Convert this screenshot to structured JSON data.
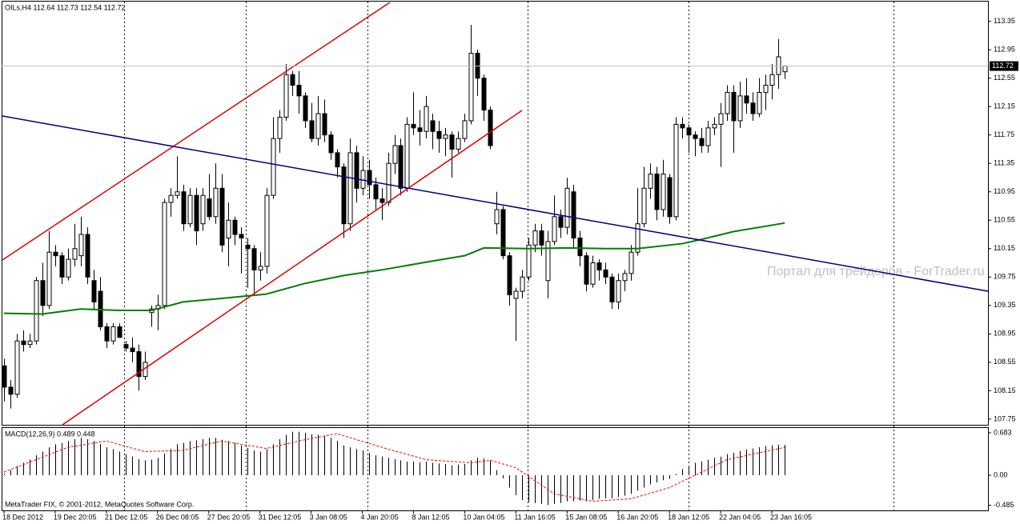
{
  "chart_data": {
    "type": "candlestick",
    "header": "OILs,H4 112.64 112.73 112.54 112.72",
    "ohlc": [
      [
        108.5,
        108.6,
        108.0,
        108.2
      ],
      [
        108.2,
        108.3,
        107.9,
        108.1
      ],
      [
        108.1,
        108.95,
        108.05,
        108.85
      ],
      [
        108.85,
        109.0,
        108.7,
        108.8
      ],
      [
        108.8,
        108.95,
        108.75,
        108.85
      ],
      [
        108.85,
        109.75,
        108.8,
        109.7
      ],
      [
        109.7,
        109.95,
        109.2,
        109.35
      ],
      [
        109.35,
        110.4,
        109.3,
        110.1
      ],
      [
        110.1,
        110.2,
        109.9,
        110.05
      ],
      [
        110.05,
        110.1,
        109.65,
        109.75
      ],
      [
        109.75,
        110.15,
        109.7,
        110.0
      ],
      [
        110.0,
        110.5,
        109.9,
        110.15
      ],
      [
        110.05,
        110.6,
        109.9,
        110.35
      ],
      [
        110.35,
        110.45,
        109.65,
        109.75
      ],
      [
        109.7,
        109.85,
        109.3,
        109.4
      ],
      [
        109.55,
        109.75,
        109.0,
        109.05
      ],
      [
        109.05,
        109.1,
        108.75,
        108.85
      ],
      [
        108.85,
        109.1,
        108.8,
        109.05
      ],
      [
        109.05,
        109.1,
        108.9,
        108.9
      ],
      [
        108.8,
        108.85,
        108.7,
        108.75
      ],
      [
        108.75,
        108.9,
        108.55,
        108.7
      ],
      [
        108.7,
        108.8,
        108.15,
        108.35
      ],
      [
        108.35,
        108.7,
        108.3,
        108.55
      ],
      [
        109.25,
        109.35,
        109.05,
        109.3
      ],
      [
        109.3,
        109.5,
        109.0,
        109.35
      ],
      [
        109.35,
        110.85,
        109.3,
        110.8
      ],
      [
        110.8,
        111.0,
        110.6,
        110.9
      ],
      [
        110.9,
        111.45,
        110.85,
        110.95
      ],
      [
        110.95,
        111.05,
        110.4,
        110.5
      ],
      [
        110.5,
        111.0,
        110.45,
        110.9
      ],
      [
        110.9,
        111.0,
        110.2,
        110.4
      ],
      [
        110.5,
        111.0,
        110.4,
        110.9
      ],
      [
        110.85,
        111.2,
        110.55,
        110.6
      ],
      [
        110.6,
        111.35,
        110.5,
        111.0
      ],
      [
        111.0,
        111.2,
        110.1,
        110.2
      ],
      [
        110.3,
        110.8,
        109.9,
        110.55
      ],
      [
        110.55,
        110.6,
        110.2,
        110.35
      ],
      [
        110.35,
        110.45,
        109.8,
        110.3
      ],
      [
        110.2,
        110.3,
        109.6,
        110.15
      ],
      [
        110.15,
        110.2,
        109.5,
        109.85
      ],
      [
        109.85,
        110.1,
        109.7,
        109.9
      ],
      [
        109.9,
        111.0,
        109.8,
        110.9
      ],
      [
        110.9,
        112.0,
        110.85,
        111.7
      ],
      [
        111.7,
        112.1,
        111.5,
        112.0
      ],
      [
        112.0,
        112.75,
        111.95,
        112.6
      ],
      [
        112.6,
        112.65,
        112.3,
        112.45
      ],
      [
        112.45,
        112.65,
        112.05,
        112.3
      ],
      [
        112.3,
        112.35,
        111.85,
        111.95
      ],
      [
        111.95,
        112.2,
        111.65,
        111.7
      ],
      [
        111.7,
        112.3,
        111.6,
        112.05
      ],
      [
        112.05,
        112.25,
        111.65,
        111.75
      ],
      [
        111.75,
        111.8,
        111.4,
        111.5
      ],
      [
        111.5,
        111.55,
        111.15,
        111.3
      ],
      [
        111.3,
        111.35,
        110.3,
        110.5
      ],
      [
        110.5,
        111.7,
        110.4,
        111.5
      ],
      [
        111.5,
        111.6,
        110.8,
        111.0
      ],
      [
        111.0,
        111.45,
        110.9,
        111.25
      ],
      [
        111.25,
        111.4,
        110.85,
        111.05
      ],
      [
        111.05,
        111.15,
        110.7,
        110.85
      ],
      [
        110.85,
        111.0,
        110.55,
        110.8
      ],
      [
        110.8,
        111.5,
        110.75,
        111.35
      ],
      [
        111.35,
        111.75,
        111.2,
        111.6
      ],
      [
        111.6,
        111.7,
        110.9,
        111.0
      ],
      [
        111.0,
        112.0,
        110.95,
        111.9
      ],
      [
        111.9,
        112.35,
        111.75,
        111.85
      ],
      [
        111.85,
        112.1,
        111.6,
        111.8
      ],
      [
        111.8,
        112.3,
        111.7,
        112.15
      ],
      [
        111.95,
        112.05,
        111.55,
        111.8
      ],
      [
        111.8,
        111.95,
        111.5,
        111.7
      ],
      [
        111.7,
        111.85,
        111.45,
        111.75
      ],
      [
        111.75,
        111.8,
        111.15,
        111.55
      ],
      [
        111.55,
        111.8,
        111.5,
        111.7
      ],
      [
        111.7,
        112.05,
        111.65,
        111.95
      ],
      [
        111.95,
        113.3,
        111.9,
        112.9
      ],
      [
        112.9,
        112.95,
        112.3,
        112.55
      ],
      [
        112.55,
        112.6,
        111.95,
        112.1
      ],
      [
        112.1,
        112.15,
        111.55,
        111.6
      ],
      [
        110.5,
        110.95,
        110.35,
        110.7
      ],
      [
        110.7,
        110.75,
        110.0,
        110.05
      ],
      [
        110.05,
        110.1,
        109.35,
        109.5
      ],
      [
        109.45,
        109.6,
        108.85,
        109.55
      ],
      [
        109.55,
        109.85,
        109.45,
        109.75
      ],
      [
        109.75,
        110.3,
        109.7,
        110.2
      ],
      [
        110.2,
        110.5,
        110.1,
        110.4
      ],
      [
        110.4,
        110.5,
        110.05,
        110.2
      ],
      [
        109.7,
        110.4,
        109.45,
        110.25
      ],
      [
        110.25,
        110.9,
        110.2,
        110.6
      ],
      [
        110.6,
        110.7,
        110.3,
        110.45
      ],
      [
        110.45,
        111.15,
        110.35,
        111.0
      ],
      [
        110.95,
        111.05,
        110.15,
        110.3
      ],
      [
        110.3,
        110.4,
        109.9,
        110.05
      ],
      [
        110.05,
        110.1,
        109.55,
        109.65
      ],
      [
        109.65,
        110.05,
        109.6,
        109.95
      ],
      [
        109.95,
        110.0,
        109.7,
        109.85
      ],
      [
        109.85,
        109.95,
        109.65,
        109.75
      ],
      [
        109.75,
        109.8,
        109.3,
        109.4
      ],
      [
        109.4,
        109.8,
        109.3,
        109.7
      ],
      [
        109.7,
        109.85,
        109.55,
        109.8
      ],
      [
        109.8,
        110.2,
        109.7,
        110.1
      ],
      [
        110.1,
        111.0,
        110.05,
        110.5
      ],
      [
        110.5,
        111.3,
        110.45,
        111.0
      ],
      [
        111.0,
        111.35,
        110.85,
        111.2
      ],
      [
        111.2,
        111.3,
        110.55,
        110.7
      ],
      [
        110.7,
        111.4,
        110.6,
        111.2
      ],
      [
        111.15,
        111.2,
        110.5,
        110.6
      ],
      [
        110.6,
        112.0,
        110.55,
        111.9
      ],
      [
        111.9,
        112.0,
        111.7,
        111.85
      ],
      [
        111.85,
        111.9,
        111.5,
        111.75
      ],
      [
        111.75,
        111.8,
        111.45,
        111.7
      ],
      [
        111.7,
        111.85,
        111.5,
        111.6
      ],
      [
        111.6,
        111.95,
        111.5,
        111.85
      ],
      [
        111.85,
        112.0,
        111.75,
        111.9
      ],
      [
        111.9,
        112.2,
        111.3,
        112.05
      ],
      [
        112.05,
        112.45,
        111.95,
        112.35
      ],
      [
        112.35,
        112.45,
        111.5,
        111.95
      ],
      [
        111.95,
        112.5,
        111.85,
        112.3
      ],
      [
        112.3,
        112.55,
        112.05,
        112.2
      ],
      [
        112.2,
        112.35,
        111.95,
        112.05
      ],
      [
        112.05,
        112.55,
        112.0,
        112.35
      ],
      [
        112.35,
        112.6,
        112.1,
        112.45
      ],
      [
        112.45,
        112.75,
        112.25,
        112.6
      ],
      [
        112.6,
        113.1,
        112.4,
        112.85
      ],
      [
        112.64,
        112.73,
        112.54,
        112.72
      ]
    ],
    "ma": {
      "color": "#008000",
      "x": [
        0,
        6,
        12,
        18,
        23,
        28,
        34,
        41,
        47,
        53,
        59,
        66,
        72,
        75,
        82,
        88,
        94,
        99,
        106,
        109,
        114,
        122
      ],
      "values": [
        109.24,
        109.23,
        109.3,
        109.28,
        109.28,
        109.4,
        109.45,
        109.51,
        109.66,
        109.77,
        109.85,
        109.96,
        110.05,
        110.16,
        110.15,
        110.16,
        110.15,
        110.15,
        110.22,
        110.28,
        110.39,
        110.51
      ]
    },
    "ylim": [
      107.67,
      113.65
    ],
    "yticks": [
      113.35,
      112.95,
      112.55,
      112.15,
      111.75,
      111.35,
      110.95,
      110.55,
      110.15,
      109.75,
      109.35,
      108.95,
      108.55,
      108.15,
      107.75
    ],
    "x_labels": [
      "18 Dec 2012",
      "19 Dec 20:05",
      "21 Dec 12:05",
      "26 Dec 08:05",
      "27 Dec 20:05",
      "31 Dec 12:05",
      "3 Jan 08:05",
      "4 Jan 20:05",
      "8 Jan 12:05",
      "10 Jan 04:05",
      "11 Jan 16:05",
      "15 Jan 08:05",
      "16 Jan 20:05",
      "18 Jan 12:05",
      "22 Jan 04:05",
      "23 Jan 16:05"
    ],
    "macd": {
      "label": "MACD(12,26,9) 0.489 0.448",
      "values": [
        0.02,
        0.08,
        0.15,
        0.2,
        0.25,
        0.32,
        0.38,
        0.45,
        0.5,
        0.52,
        0.55,
        0.58,
        0.6,
        0.58,
        0.55,
        0.5,
        0.45,
        0.42,
        0.38,
        0.34,
        0.3,
        0.26,
        0.24,
        0.25,
        0.28,
        0.35,
        0.42,
        0.5,
        0.52,
        0.55,
        0.56,
        0.58,
        0.6,
        0.6,
        0.57,
        0.55,
        0.52,
        0.48,
        0.44,
        0.4,
        0.38,
        0.42,
        0.5,
        0.58,
        0.65,
        0.7,
        0.7,
        0.68,
        0.66,
        0.65,
        0.63,
        0.6,
        0.55,
        0.48,
        0.45,
        0.42,
        0.4,
        0.36,
        0.32,
        0.3,
        0.28,
        0.26,
        0.24,
        0.22,
        0.22,
        0.21,
        0.22,
        0.2,
        0.19,
        0.18,
        0.16,
        0.17,
        0.18,
        0.24,
        0.28,
        0.27,
        0.24,
        0.08,
        -0.05,
        -0.2,
        -0.32,
        -0.4,
        -0.43,
        -0.45,
        -0.46,
        -0.48,
        -0.46,
        -0.45,
        -0.42,
        -0.42,
        -0.41,
        -0.42,
        -0.4,
        -0.38,
        -0.37,
        -0.37,
        -0.35,
        -0.33,
        -0.3,
        -0.25,
        -0.2,
        -0.15,
        -0.12,
        -0.08,
        -0.06,
        0.02,
        0.1,
        0.15,
        0.2,
        0.22,
        0.25,
        0.28,
        0.3,
        0.34,
        0.36,
        0.39,
        0.41,
        0.43,
        0.45,
        0.47,
        0.48,
        0.49,
        0.489
      ],
      "signal": {
        "color": "#ff0000",
        "x": [
          0,
          10,
          16,
          22,
          28,
          34,
          41,
          46,
          52,
          60,
          66,
          73,
          76,
          80,
          86,
          92,
          98,
          104,
          108,
          113,
          122
        ],
        "values": [
          0.05,
          0.45,
          0.55,
          0.38,
          0.4,
          0.55,
          0.43,
          0.55,
          0.67,
          0.42,
          0.25,
          0.2,
          0.24,
          0.12,
          -0.3,
          -0.42,
          -0.38,
          -0.2,
          0.0,
          0.25,
          0.448
        ]
      },
      "ylim": [
        -0.567,
        0.773
      ],
      "yticks": [
        0.683,
        {
          "value": 0,
          "label": "0.00"
        },
        -0.485
      ]
    },
    "watermark": "Портал для трейдеров - ForTrader.ru",
    "footer": "MetaTrader FIX, © 2001-2012, MetaQuotes Software Corp."
  }
}
